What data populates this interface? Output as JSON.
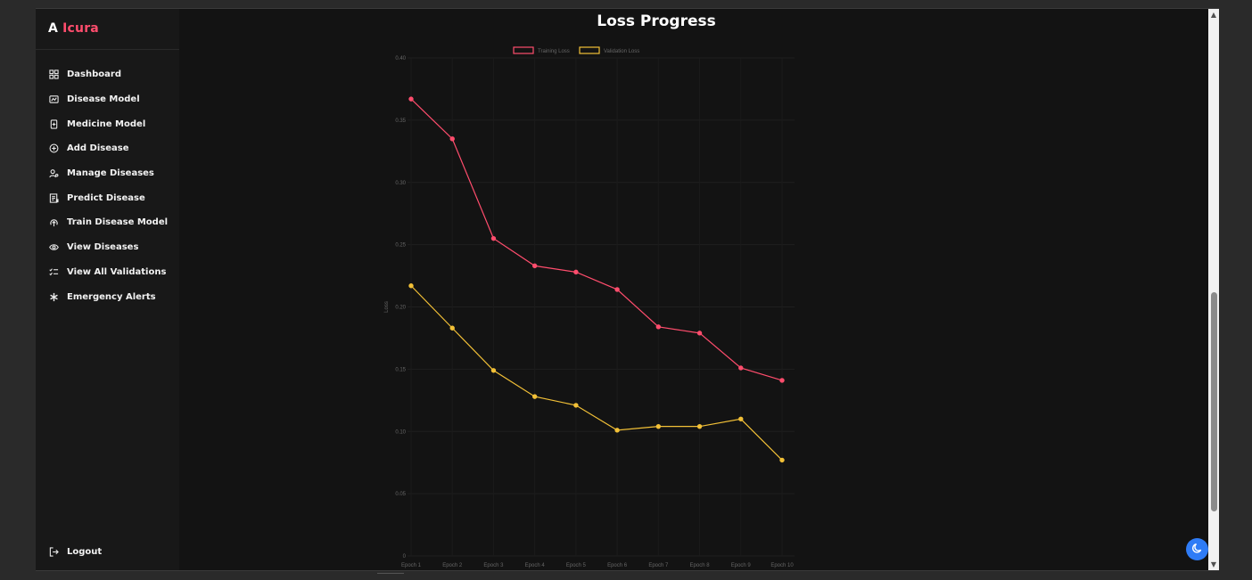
{
  "brand": {
    "prefix": "A",
    "name": "Icura",
    "accent_color": "#ff4d6d"
  },
  "sidebar": {
    "items": [
      {
        "label": "Dashboard",
        "icon": "dashboard-icon"
      },
      {
        "label": "Disease Model",
        "icon": "disease-model-icon"
      },
      {
        "label": "Medicine Model",
        "icon": "medicine-icon"
      },
      {
        "label": "Add Disease",
        "icon": "add-circle-icon"
      },
      {
        "label": "Manage Diseases",
        "icon": "manage-users-icon"
      },
      {
        "label": "Predict Disease",
        "icon": "predict-icon"
      },
      {
        "label": "Train Disease Model",
        "icon": "train-upload-icon"
      },
      {
        "label": "View Diseases",
        "icon": "eye-icon"
      },
      {
        "label": "View All Validations",
        "icon": "checklist-icon"
      },
      {
        "label": "Emergency Alerts",
        "icon": "asterisk-icon"
      }
    ],
    "logout": {
      "label": "Logout",
      "icon": "logout-icon"
    }
  },
  "theme_toggle": {
    "icon": "moon-icon",
    "color": "#2f7cf6"
  },
  "chart_data": {
    "type": "line",
    "title": "Loss Progress",
    "ylabel": "Loss",
    "xlabel": "",
    "categories": [
      "Epoch 1",
      "Epoch 2",
      "Epoch 3",
      "Epoch 4",
      "Epoch 5",
      "Epoch 6",
      "Epoch 7",
      "Epoch 8",
      "Epoch 9",
      "Epoch 10"
    ],
    "ylim": [
      0,
      0.4
    ],
    "yticks": [
      "0",
      "0.05",
      "0.10",
      "0.15",
      "0.20",
      "0.25",
      "0.30",
      "0.35",
      "0.40"
    ],
    "legend": "top",
    "grid": true,
    "series": [
      {
        "name": "Training Loss",
        "color": "#ff4d6d",
        "values": [
          0.367,
          0.335,
          0.255,
          0.233,
          0.228,
          0.214,
          0.184,
          0.179,
          0.151,
          0.141
        ]
      },
      {
        "name": "Validation Loss",
        "color": "#f2c037",
        "values": [
          0.217,
          0.183,
          0.149,
          0.128,
          0.121,
          0.101,
          0.104,
          0.104,
          0.11,
          0.077
        ]
      }
    ]
  }
}
